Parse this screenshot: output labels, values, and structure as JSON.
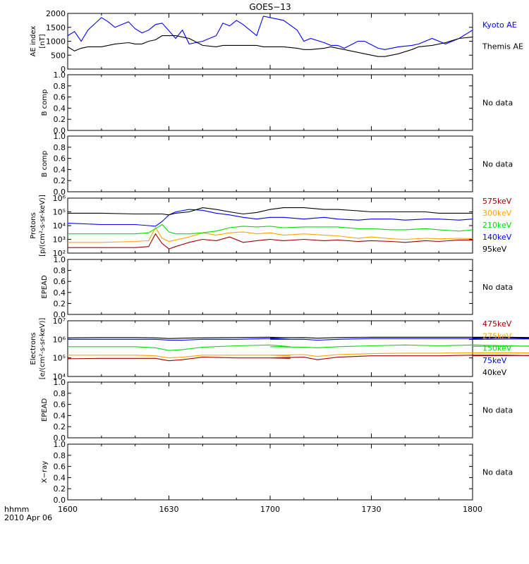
{
  "title": "GOES−13",
  "footer": {
    "label": "hhmm",
    "date": "2010 Apr 06"
  },
  "x_ticks": [
    "1600",
    "1630",
    "1700",
    "1730",
    "1800"
  ],
  "no_data_text": "No data",
  "colors": {
    "blue": "#0000ff",
    "black": "#000000",
    "red": "#a00000",
    "orange": "#ffa500",
    "green": "#00e000"
  },
  "chart_data": [
    {
      "id": "ae",
      "type": "line",
      "ylabel": "AE index",
      "ylabel2": "[nT]",
      "ylim": [
        0,
        2000
      ],
      "yticks": [
        "0",
        "500",
        "1000",
        "1500",
        "2000"
      ],
      "x": [
        1600,
        1602,
        1604,
        1606,
        1610,
        1612,
        1614,
        1618,
        1620,
        1622,
        1624,
        1626,
        1628,
        1632,
        1634,
        1636,
        1640,
        1644,
        1646,
        1648,
        1650,
        1652,
        1656,
        1658,
        1702,
        1704,
        1708,
        1710,
        1712,
        1716,
        1718,
        1720,
        1722,
        1726,
        1728,
        1732,
        1734,
        1738,
        1742,
        1744,
        1748,
        1752,
        1756,
        1800
      ],
      "series": [
        {
          "name": "Kyoto AE",
          "color": "#0000ff",
          "values": [
            1200,
            1350,
            1000,
            1400,
            1850,
            1700,
            1500,
            1700,
            1450,
            1300,
            1400,
            1600,
            1650,
            1100,
            1400,
            900,
            1000,
            1200,
            1650,
            1550,
            1750,
            1600,
            1200,
            1900,
            1800,
            1750,
            1400,
            1000,
            1100,
            950,
            850,
            850,
            750,
            1000,
            1000,
            750,
            700,
            800,
            850,
            900,
            1100,
            900,
            1100,
            1400
          ]
        },
        {
          "name": "Themis AE",
          "color": "#000000",
          "values": [
            800,
            650,
            750,
            800,
            800,
            850,
            900,
            950,
            900,
            900,
            1000,
            1050,
            1200,
            1200,
            1150,
            1100,
            850,
            800,
            850,
            850,
            850,
            850,
            850,
            800,
            800,
            800,
            750,
            700,
            700,
            750,
            800,
            750,
            700,
            600,
            550,
            450,
            450,
            550,
            700,
            800,
            850,
            950,
            1100,
            1150
          ]
        }
      ]
    },
    {
      "id": "b1",
      "type": "line",
      "ylabel": "B comp",
      "ylim": [
        0,
        1
      ],
      "yticks": [
        "0.0",
        "0.2",
        "0.4",
        "0.6",
        "0.8",
        "1.0"
      ],
      "series": [],
      "status": "No data"
    },
    {
      "id": "b2",
      "type": "line",
      "ylabel": "B comp",
      "ylim": [
        0,
        1
      ],
      "yticks": [
        "0.0",
        "0.2",
        "0.4",
        "0.6",
        "0.8",
        "1.0"
      ],
      "series": [],
      "status": "No data"
    },
    {
      "id": "protons",
      "type": "line",
      "ylabel": "Protons",
      "ylabel2": "[p/(cm²-s-sr-keV)]",
      "scale": "log",
      "ylim_log10": [
        2,
        6
      ],
      "yticks": [
        "10²",
        "10³",
        "10⁴",
        "10⁵",
        "10⁶"
      ],
      "x": [
        1600,
        1610,
        1620,
        1624,
        1626,
        1628,
        1630,
        1632,
        1636,
        1640,
        1644,
        1648,
        1652,
        1656,
        1700,
        1704,
        1710,
        1716,
        1720,
        1726,
        1730,
        1736,
        1740,
        1746,
        1750,
        1756,
        1800
      ],
      "series": [
        {
          "name": "575keV",
          "color": "#a00000",
          "values": [
            250,
            250,
            250,
            300,
            2500,
            500,
            200,
            300,
            600,
            1000,
            800,
            1500,
            600,
            800,
            1000,
            800,
            1000,
            800,
            900,
            700,
            800,
            700,
            600,
            800,
            700,
            900,
            900
          ]
        },
        {
          "name": "300keV",
          "color": "#ffa500",
          "values": [
            600,
            600,
            700,
            800,
            7000,
            1200,
            700,
            900,
            1500,
            3000,
            2000,
            3000,
            3500,
            2500,
            3000,
            2000,
            2500,
            2000,
            1800,
            1200,
            1500,
            1100,
            1000,
            1200,
            1100,
            1200,
            1100
          ]
        },
        {
          "name": "210keV",
          "color": "#00e000",
          "values": [
            2500,
            2500,
            2500,
            3000,
            6000,
            12000,
            3500,
            2500,
            2500,
            3000,
            4000,
            7000,
            9000,
            8000,
            9000,
            7000,
            8000,
            8000,
            8000,
            6000,
            6000,
            5000,
            5000,
            6000,
            5000,
            4000,
            5000
          ]
        },
        {
          "name": "140keV",
          "color": "#0000ff",
          "values": [
            15000,
            12000,
            12000,
            10000,
            9000,
            20000,
            60000,
            100000,
            150000,
            130000,
            80000,
            60000,
            40000,
            30000,
            40000,
            40000,
            30000,
            40000,
            30000,
            25000,
            30000,
            30000,
            25000,
            30000,
            30000,
            25000,
            30000
          ]
        },
        {
          "name": "95keV",
          "color": "#000000",
          "values": [
            80000,
            80000,
            70000,
            70000,
            70000,
            70000,
            60000,
            80000,
            100000,
            200000,
            150000,
            100000,
            70000,
            90000,
            150000,
            200000,
            200000,
            150000,
            150000,
            120000,
            100000,
            100000,
            100000,
            100000,
            80000,
            80000,
            80000
          ]
        }
      ]
    },
    {
      "id": "epead1",
      "type": "line",
      "ylabel": "EPEAD",
      "ylim": [
        0,
        1
      ],
      "yticks": [
        "0.0",
        "0.2",
        "0.4",
        "0.6",
        "0.8",
        "1.0"
      ],
      "series": [],
      "status": "No data"
    },
    {
      "id": "electrons",
      "type": "line",
      "ylabel": "Electrons",
      "ylabel2": "[e/(cm²-s-sr-keV)]",
      "scale": "log",
      "ylim_log10": [
        4,
        7
      ],
      "yticks": [
        "10⁴",
        "10⁵",
        "10⁶",
        "10⁷"
      ],
      "x": [
        1600,
        1610,
        1620,
        1626,
        1630,
        1634,
        1640,
        1650,
        1660,
        1666,
        1700,
        1710,
        1714,
        1720,
        1730,
        1740,
        1750,
        1760,
        1770,
        1780,
        1790,
        1800
      ],
      "series": [
        {
          "name": "475keV",
          "color": "#a00000",
          "values": [
            90000,
            95000,
            95000,
            95000,
            70000,
            80000,
            110000,
            100000,
            100000,
            95000,
            100000,
            110000,
            80000,
            110000,
            130000,
            130000,
            130000,
            140000,
            140000,
            130000,
            140000,
            130000
          ]
        },
        {
          "name": "275keV",
          "color": "#ffa500",
          "values": [
            140000,
            140000,
            140000,
            130000,
            100000,
            110000,
            140000,
            140000,
            140000,
            130000,
            140000,
            150000,
            120000,
            150000,
            170000,
            180000,
            180000,
            190000,
            190000,
            180000,
            190000,
            180000
          ]
        },
        {
          "name": "150keV",
          "color": "#00e000",
          "values": [
            400000,
            400000,
            400000,
            350000,
            250000,
            280000,
            380000,
            450000,
            500000,
            400000,
            400000,
            380000,
            350000,
            400000,
            450000,
            500000,
            450000,
            500000,
            450000,
            420000,
            450000,
            420000
          ]
        },
        {
          "name": "75keV",
          "color": "#0000ff",
          "values": [
            1000000,
            1000000,
            1000000,
            1000000,
            900000,
            900000,
            1000000,
            1000000,
            1100000,
            1000000,
            1000000,
            1000000,
            900000,
            1000000,
            1100000,
            1100000,
            1100000,
            1100000,
            1200000,
            1100000,
            1100000,
            1000000
          ]
        },
        {
          "name": "40keV",
          "color": "#000000",
          "values": [
            1200000,
            1250000,
            1250000,
            1200000,
            1100000,
            1150000,
            1200000,
            1250000,
            1300000,
            1200000,
            1200000,
            1250000,
            1150000,
            1250000,
            1300000,
            1300000,
            1300000,
            1300000,
            1300000,
            1250000,
            1250000,
            1200000
          ]
        }
      ]
    },
    {
      "id": "epead2",
      "type": "line",
      "ylabel": "EPEAD",
      "ylim": [
        0,
        1
      ],
      "yticks": [
        "0.0",
        "0.2",
        "0.4",
        "0.6",
        "0.8",
        "1.0"
      ],
      "series": [],
      "status": "No data"
    },
    {
      "id": "xray",
      "type": "line",
      "ylabel": "X−ray",
      "ylim": [
        0,
        1
      ],
      "yticks": [
        "0.0",
        "0.2",
        "0.4",
        "0.6",
        "0.8",
        "1.0"
      ],
      "series": [],
      "status": "No data"
    }
  ]
}
